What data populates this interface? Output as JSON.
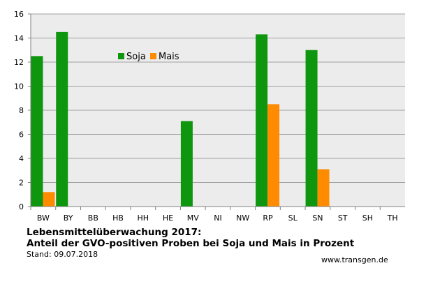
{
  "chart_data": {
    "type": "bar",
    "categories": [
      "BW",
      "BY",
      "BB",
      "HB",
      "HH",
      "HE",
      "MV",
      "NI",
      "NW",
      "RP",
      "SL",
      "SN",
      "ST",
      "SH",
      "TH"
    ],
    "series": [
      {
        "name": "Soja",
        "color": "#0f960f",
        "values": [
          12.5,
          14.5,
          0,
          0,
          0,
          0,
          7.1,
          0,
          0,
          14.3,
          0,
          13.0,
          0,
          0,
          0
        ]
      },
      {
        "name": "Mais",
        "color": "#ff8c00",
        "values": [
          1.2,
          0,
          0,
          0,
          0,
          0,
          0,
          0,
          0,
          8.5,
          0,
          3.1,
          0,
          0,
          0
        ]
      }
    ],
    "ylim": [
      0,
      16
    ],
    "yticks": [
      "0",
      "2",
      "4",
      "6",
      "8",
      "10",
      "12",
      "14",
      "16"
    ],
    "grid": true,
    "legend_placement": "top-left inside plot",
    "plot_background": "#ececec"
  },
  "caption": {
    "title_line1": "Lebensmittelüberwachung 2017:",
    "title_line2": "Anteil der GVO-positiven Proben bei Soja und Mais in Prozent",
    "date": "Stand: 09.07.2018"
  },
  "source": "www.transgen.de"
}
